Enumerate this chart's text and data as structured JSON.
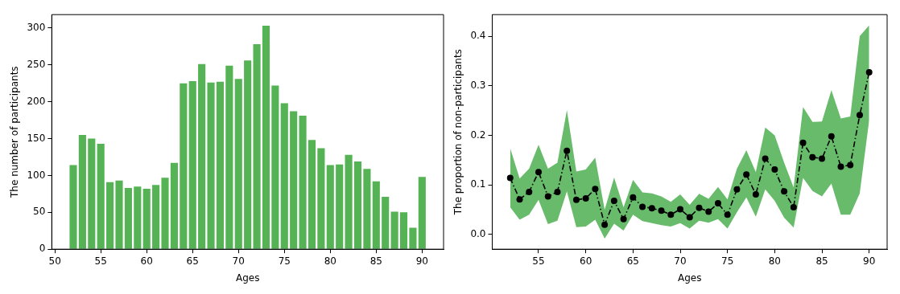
{
  "chart_data": [
    {
      "type": "bar",
      "xlabel": "Ages",
      "ylabel": "The number of participants",
      "x": [
        52,
        53,
        54,
        55,
        56,
        57,
        58,
        59,
        60,
        61,
        62,
        63,
        64,
        65,
        66,
        67,
        68,
        69,
        70,
        71,
        72,
        73,
        74,
        75,
        76,
        77,
        78,
        79,
        80,
        81,
        82,
        83,
        84,
        85,
        86,
        87,
        88,
        89,
        90
      ],
      "values": [
        114,
        155,
        150,
        143,
        91,
        93,
        83,
        85,
        82,
        87,
        97,
        117,
        225,
        228,
        251,
        226,
        227,
        249,
        231,
        256,
        278,
        303,
        222,
        198,
        187,
        181,
        148,
        137,
        114,
        115,
        128,
        119,
        109,
        92,
        71,
        51,
        50,
        29,
        98
      ],
      "color": "#55b355",
      "xlim": [
        49.66,
        92.34
      ],
      "xticks": [
        50,
        55,
        60,
        65,
        70,
        75,
        80,
        85,
        90
      ],
      "ylim": [
        0,
        318.15
      ],
      "yticks": [
        0,
        50,
        100,
        150,
        200,
        250,
        300
      ],
      "grid": false,
      "legend": false
    },
    {
      "type": "line",
      "xlabel": "Ages",
      "ylabel": "The proportion of non-participants",
      "x": [
        52,
        53,
        54,
        55,
        56,
        57,
        58,
        59,
        60,
        61,
        62,
        63,
        64,
        65,
        66,
        67,
        68,
        69,
        70,
        71,
        72,
        73,
        74,
        75,
        76,
        77,
        78,
        79,
        80,
        81,
        82,
        83,
        84,
        85,
        86,
        87,
        88,
        89,
        90
      ],
      "series": [
        {
          "color": "#000000",
          "values": [
            0.114,
            0.071,
            0.086,
            0.126,
            0.077,
            0.086,
            0.169,
            0.07,
            0.073,
            0.092,
            0.02,
            0.068,
            0.031,
            0.075,
            0.056,
            0.053,
            0.048,
            0.04,
            0.051,
            0.035,
            0.054,
            0.046,
            0.063,
            0.04,
            0.091,
            0.121,
            0.081,
            0.153,
            0.131,
            0.087,
            0.055,
            0.185,
            0.156,
            0.153,
            0.198,
            0.137,
            0.14,
            0.241,
            0.327
          ],
          "upper": [
            0.174,
            0.113,
            0.133,
            0.181,
            0.133,
            0.145,
            0.251,
            0.127,
            0.131,
            0.155,
            0.05,
            0.115,
            0.055,
            0.11,
            0.085,
            0.083,
            0.077,
            0.066,
            0.081,
            0.06,
            0.082,
            0.072,
            0.096,
            0.071,
            0.133,
            0.17,
            0.126,
            0.216,
            0.2,
            0.145,
            0.095,
            0.257,
            0.227,
            0.228,
            0.291,
            0.234,
            0.238,
            0.4,
            0.422
          ],
          "lower": [
            0.055,
            0.03,
            0.04,
            0.07,
            0.021,
            0.028,
            0.087,
            0.015,
            0.016,
            0.03,
            -0.008,
            0.022,
            0.008,
            0.04,
            0.027,
            0.023,
            0.019,
            0.016,
            0.023,
            0.012,
            0.028,
            0.024,
            0.031,
            0.012,
            0.045,
            0.075,
            0.036,
            0.091,
            0.068,
            0.034,
            0.014,
            0.114,
            0.088,
            0.077,
            0.103,
            0.04,
            0.04,
            0.083,
            0.231
          ]
        }
      ],
      "marker": "circle",
      "line_style": "dashdot",
      "xlim": [
        50.1,
        91.9
      ],
      "xticks": [
        55,
        60,
        65,
        70,
        75,
        80,
        85,
        90
      ],
      "ylim": [
        -0.0295,
        0.4435
      ],
      "yticks": [
        {
          "value": 0,
          "label": "0.0"
        },
        0.1,
        0.2,
        0.3,
        0.4
      ],
      "grid": false,
      "legend": false
    }
  ]
}
